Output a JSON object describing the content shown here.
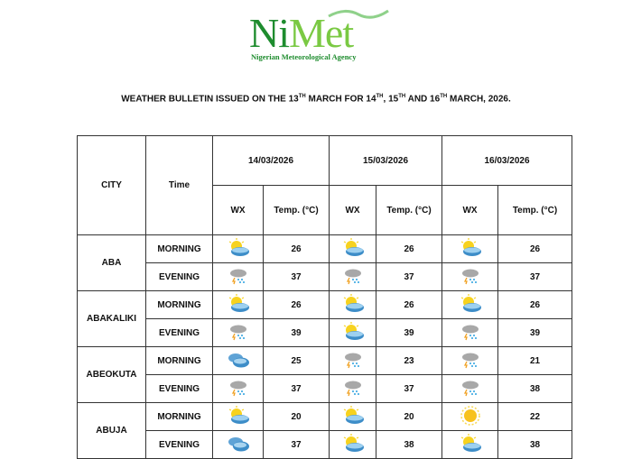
{
  "logo": {
    "text": "NiMet",
    "subtitle": "Nigerian Meteorological Agency"
  },
  "title": {
    "p1": "WEATHER BULLETIN ISSUED ON THE 13",
    "s1": "TH",
    "p2": " MARCH FOR 14",
    "s2": "TH",
    "p3": ", 15",
    "s3": "TH",
    "p4": " AND 16",
    "s4": "TH",
    "p5": " MARCH, 2026."
  },
  "headers": {
    "city": "CITY",
    "time": "Time",
    "dates": [
      "14/03/2026",
      "15/03/2026",
      "16/03/2026"
    ],
    "wx": "WX",
    "temp": "Temp. (°C)"
  },
  "rows": [
    {
      "city": "ABA",
      "time": "MORNING",
      "wx": [
        "partly-cloudy",
        "partly-cloudy",
        "partly-cloudy"
      ],
      "temp": [
        "26",
        "26",
        "26"
      ]
    },
    {
      "city": "",
      "time": "EVENING",
      "wx": [
        "thunderstorm",
        "thunderstorm",
        "thunderstorm"
      ],
      "temp": [
        "37",
        "37",
        "37"
      ]
    },
    {
      "city": "ABAKALIKI",
      "time": "MORNING",
      "wx": [
        "partly-cloudy",
        "partly-cloudy",
        "partly-cloudy"
      ],
      "temp": [
        "26",
        "26",
        "26"
      ]
    },
    {
      "city": "",
      "time": "EVENING",
      "wx": [
        "thunderstorm",
        "partly-cloudy",
        "thunderstorm"
      ],
      "temp": [
        "39",
        "39",
        "39"
      ]
    },
    {
      "city": "ABEOKUTA",
      "time": "MORNING",
      "wx": [
        "cloudy",
        "thunderstorm",
        "thunderstorm"
      ],
      "temp": [
        "25",
        "23",
        "21"
      ]
    },
    {
      "city": "",
      "time": "EVENING",
      "wx": [
        "thunderstorm",
        "thunderstorm",
        "thunderstorm"
      ],
      "temp": [
        "37",
        "37",
        "38"
      ]
    },
    {
      "city": "ABUJA",
      "time": "MORNING",
      "wx": [
        "partly-cloudy",
        "partly-cloudy",
        "sunny"
      ],
      "temp": [
        "20",
        "20",
        "22"
      ]
    },
    {
      "city": "",
      "time": "EVENING",
      "wx": [
        "cloudy",
        "partly-cloudy",
        "partly-cloudy"
      ],
      "temp": [
        "37",
        "38",
        "38"
      ]
    }
  ]
}
